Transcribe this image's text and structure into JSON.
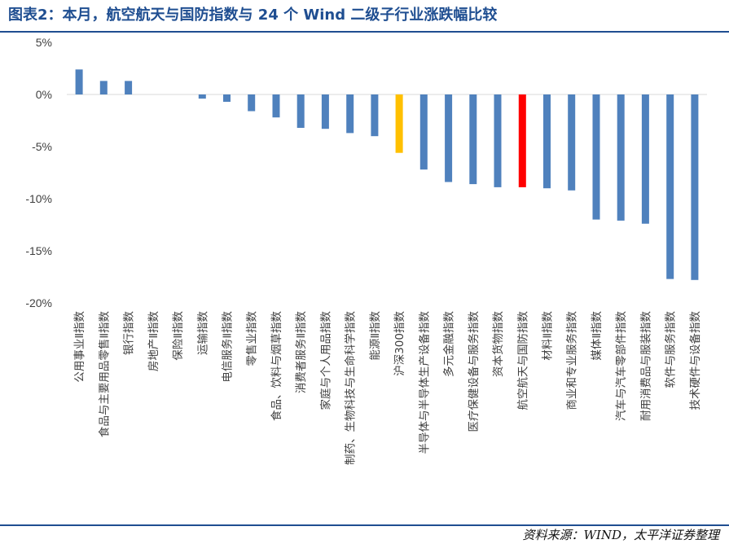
{
  "title": "图表2：本月，航空航天与国防指数与 24 个 Wind 二级子行业涨跌幅比较",
  "source": "资料来源：WIND，太平洋证券整理",
  "colors": {
    "default": "#4f81bd",
    "benchmark": "#ffc000",
    "highlight": "#ff0000",
    "header": "#1f4e91",
    "axis": "#d9d9d9"
  },
  "chart_data": {
    "type": "bar",
    "unit": "%",
    "ylim": [
      -20,
      5
    ],
    "yticks": [
      5,
      0,
      -5,
      -10,
      -15,
      -20
    ],
    "ytick_labels": [
      "5%",
      "0%",
      "-5%",
      "-10%",
      "-15%",
      "-20%"
    ],
    "categories": [
      "公用事业Ⅱ指数",
      "食品与主要用品零售Ⅱ指数",
      "银行指数",
      "房地产Ⅱ指数",
      "保险Ⅱ指数",
      "运输指数",
      "电信服务Ⅱ指数",
      "零售业指数",
      "食品、饮料与烟草指数",
      "消费者服务Ⅱ指数",
      "家庭与个人用品指数",
      "制药、生物科技与生命科学指数",
      "能源Ⅱ指数",
      "沪深300指数",
      "半导体与半导体生产设备指数",
      "多元金融指数",
      "医疗保健设备与服务指数",
      "资本货物指数",
      "航空航天与国防指数",
      "材料Ⅱ指数",
      "商业和专业服务指数",
      "媒体Ⅱ指数",
      "汽车与汽车零部件指数",
      "耐用消费品与服装指数",
      "软件与服务指数",
      "技术硬件与设备指数"
    ],
    "values": [
      2.4,
      1.3,
      1.3,
      0.0,
      0.0,
      -0.4,
      -0.7,
      -1.6,
      -2.2,
      -3.2,
      -3.3,
      -3.7,
      -4.0,
      -5.6,
      -7.2,
      -8.4,
      -8.6,
      -8.9,
      -8.9,
      -9.0,
      -9.2,
      -12.0,
      -12.1,
      -12.4,
      -17.7,
      -17.8
    ],
    "highlight_index": 18,
    "benchmark_index": 13
  }
}
